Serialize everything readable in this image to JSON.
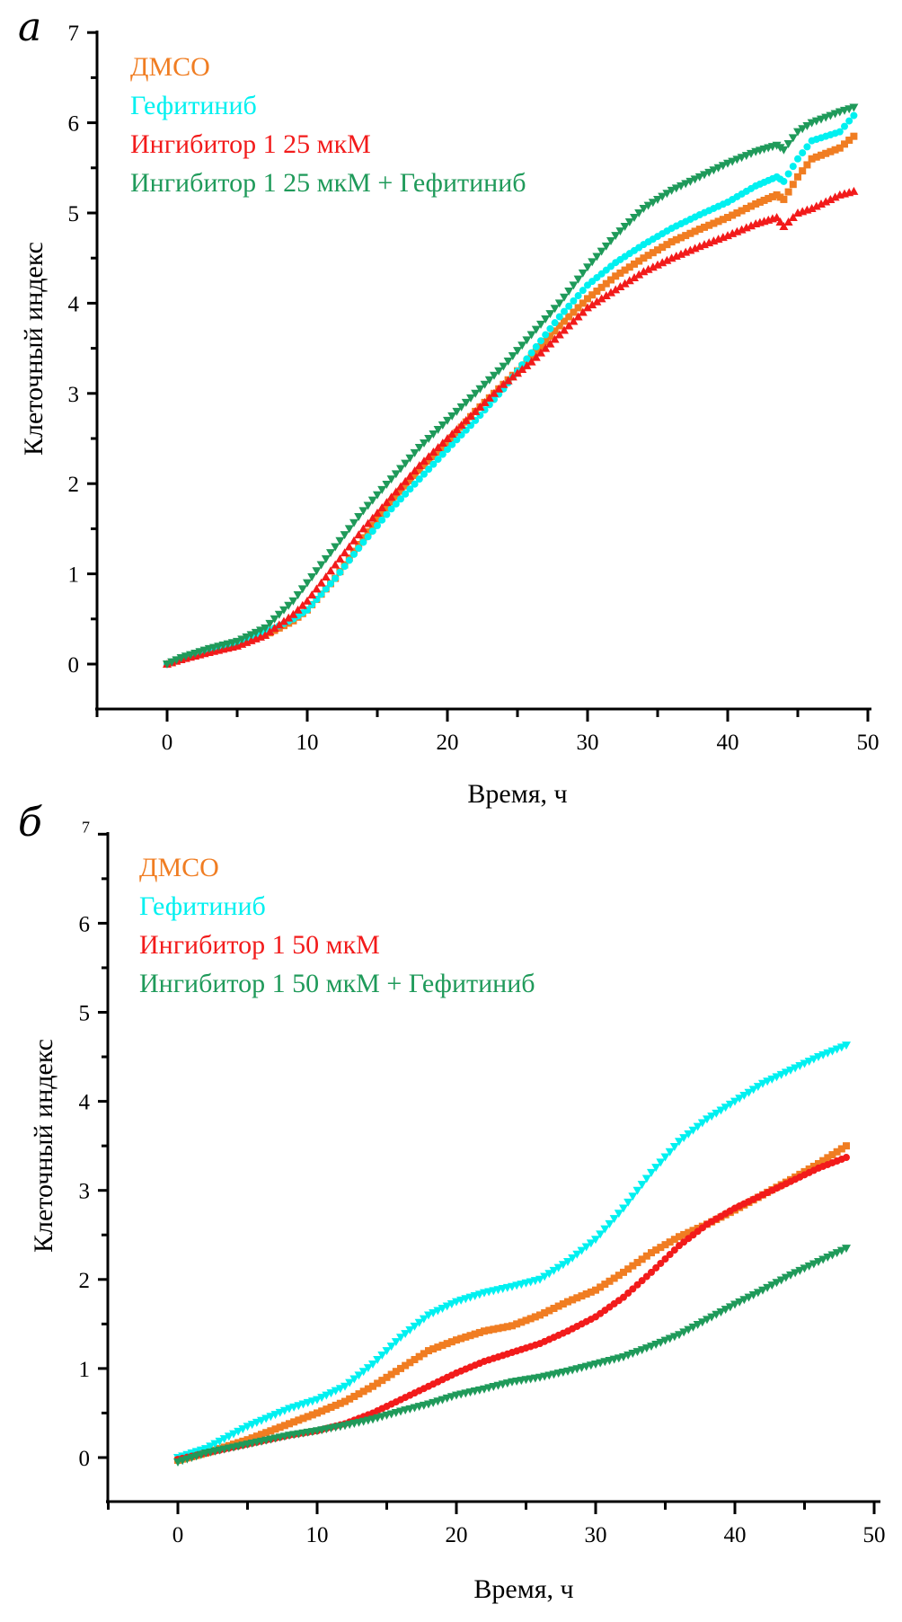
{
  "chart_data": [
    {
      "type": "scatter",
      "panel_label": "а",
      "xlabel": "Время, ч",
      "ylabel": "Клеточный индекс",
      "xlim": [
        -5,
        51
      ],
      "ylim": [
        -0.5,
        7
      ],
      "xticks": [
        0,
        10,
        20,
        30,
        40,
        50
      ],
      "yticks": [
        0,
        1,
        2,
        3,
        4,
        5,
        6,
        7
      ],
      "grid": false,
      "legend_position": "top-left",
      "series": [
        {
          "name": "ДМСО",
          "color": "#f07d22",
          "marker": "square",
          "x": [
            0,
            1,
            3,
            5,
            7,
            9,
            10,
            12,
            14,
            16,
            18,
            20,
            22,
            24,
            26,
            28,
            30,
            32,
            34,
            36,
            38,
            40,
            42,
            43.5,
            44,
            45,
            46,
            48,
            49
          ],
          "y": [
            0,
            0.05,
            0.15,
            0.22,
            0.32,
            0.48,
            0.6,
            0.95,
            1.4,
            1.8,
            2.15,
            2.45,
            2.8,
            3.1,
            3.4,
            3.75,
            4.05,
            4.3,
            4.5,
            4.68,
            4.82,
            4.95,
            5.1,
            5.2,
            5.15,
            5.4,
            5.6,
            5.72,
            5.85
          ]
        },
        {
          "name": "Гефитиниб",
          "color": "#00f0f0",
          "marker": "circle",
          "x": [
            0,
            1,
            3,
            5,
            7,
            9,
            10,
            12,
            14,
            16,
            18,
            20,
            22,
            24,
            26,
            28,
            30,
            32,
            34,
            36,
            38,
            40,
            42,
            43.5,
            44,
            45,
            46,
            48,
            49
          ],
          "y": [
            0,
            0.07,
            0.16,
            0.24,
            0.35,
            0.5,
            0.6,
            0.95,
            1.35,
            1.72,
            2.05,
            2.38,
            2.7,
            3.05,
            3.45,
            3.85,
            4.2,
            4.45,
            4.65,
            4.83,
            4.98,
            5.12,
            5.3,
            5.4,
            5.35,
            5.6,
            5.8,
            5.9,
            6.08
          ]
        },
        {
          "name": "Ингибитор 1 25 мкМ",
          "color": "#f21b1b",
          "marker": "triangle-up",
          "x": [
            0,
            1,
            3,
            5,
            7,
            9,
            10,
            12,
            14,
            16,
            18,
            20,
            22,
            24,
            26,
            28,
            30,
            32,
            34,
            36,
            38,
            40,
            42,
            43.5,
            44,
            45,
            46,
            48,
            49
          ],
          "y": [
            0,
            0.05,
            0.13,
            0.2,
            0.32,
            0.55,
            0.7,
            1.1,
            1.5,
            1.85,
            2.2,
            2.5,
            2.8,
            3.1,
            3.35,
            3.65,
            3.95,
            4.15,
            4.35,
            4.5,
            4.63,
            4.75,
            4.88,
            4.95,
            4.85,
            5.0,
            5.05,
            5.2,
            5.24
          ]
        },
        {
          "name": "Ингибитор 1 25 мкМ + Гефитиниб",
          "color": "#1f9a5a",
          "marker": "triangle-down",
          "x": [
            0,
            1,
            3,
            5,
            7,
            9,
            10,
            12,
            14,
            16,
            18,
            20,
            22,
            24,
            26,
            28,
            30,
            32,
            34,
            36,
            38,
            40,
            42,
            43.5,
            44,
            45,
            46,
            48,
            49
          ],
          "y": [
            0,
            0.07,
            0.17,
            0.25,
            0.4,
            0.7,
            0.9,
            1.3,
            1.7,
            2.05,
            2.4,
            2.7,
            3.0,
            3.3,
            3.65,
            4.0,
            4.4,
            4.75,
            5.05,
            5.25,
            5.4,
            5.55,
            5.68,
            5.75,
            5.7,
            5.9,
            6.0,
            6.12,
            6.17
          ]
        }
      ]
    },
    {
      "type": "scatter",
      "panel_label": "б",
      "xlabel": "Время, ч",
      "ylabel": "Клеточный индекс",
      "xlim": [
        -5,
        51
      ],
      "ylim": [
        -0.5,
        7
      ],
      "xticks": [
        0,
        10,
        20,
        30,
        40,
        50
      ],
      "yticks": [
        0,
        1,
        2,
        3,
        4,
        5,
        6,
        7
      ],
      "grid": false,
      "legend_position": "top-left",
      "series": [
        {
          "name": "ДМСО",
          "color": "#f07d22",
          "marker": "square",
          "x": [
            0,
            2,
            5,
            8,
            10,
            12,
            14,
            16,
            18,
            20,
            22,
            24,
            26,
            28,
            30,
            32,
            34,
            36,
            38,
            40,
            42,
            44,
            46,
            48
          ],
          "y": [
            -0.03,
            0.05,
            0.2,
            0.38,
            0.5,
            0.63,
            0.8,
            1.0,
            1.2,
            1.32,
            1.42,
            1.48,
            1.6,
            1.75,
            1.88,
            2.08,
            2.3,
            2.48,
            2.62,
            2.78,
            2.95,
            3.12,
            3.3,
            3.5
          ]
        },
        {
          "name": "Гефитиниб",
          "color": "#00f0f0",
          "marker": "triangle-down",
          "x": [
            0,
            2,
            5,
            8,
            10,
            12,
            14,
            16,
            18,
            20,
            22,
            24,
            26,
            28,
            30,
            32,
            34,
            36,
            38,
            40,
            42,
            44,
            46,
            48
          ],
          "y": [
            0,
            0.1,
            0.35,
            0.55,
            0.65,
            0.8,
            1.05,
            1.35,
            1.6,
            1.75,
            1.85,
            1.92,
            2.0,
            2.2,
            2.45,
            2.8,
            3.2,
            3.55,
            3.8,
            4.0,
            4.2,
            4.35,
            4.5,
            4.63
          ]
        },
        {
          "name": "Ингибитор 1 50 мкМ",
          "color": "#f21b1b",
          "marker": "circle",
          "x": [
            0,
            2,
            5,
            8,
            10,
            12,
            14,
            16,
            18,
            20,
            22,
            24,
            26,
            28,
            30,
            32,
            34,
            36,
            38,
            40,
            42,
            44,
            46,
            48
          ],
          "y": [
            -0.02,
            0.05,
            0.15,
            0.25,
            0.3,
            0.38,
            0.5,
            0.65,
            0.8,
            0.95,
            1.08,
            1.18,
            1.28,
            1.42,
            1.58,
            1.8,
            2.08,
            2.38,
            2.62,
            2.8,
            2.95,
            3.1,
            3.25,
            3.37
          ]
        },
        {
          "name": "Ингибитор 1 50 мкМ + Гефитиниб",
          "color": "#1f9a5a",
          "marker": "triangle-down",
          "x": [
            0,
            2,
            5,
            8,
            10,
            12,
            14,
            16,
            18,
            20,
            22,
            24,
            26,
            28,
            30,
            32,
            34,
            36,
            38,
            40,
            42,
            44,
            46,
            48
          ],
          "y": [
            -0.05,
            0.05,
            0.15,
            0.25,
            0.3,
            0.36,
            0.43,
            0.52,
            0.6,
            0.7,
            0.77,
            0.85,
            0.9,
            0.97,
            1.05,
            1.13,
            1.25,
            1.38,
            1.55,
            1.72,
            1.88,
            2.05,
            2.2,
            2.35
          ]
        }
      ]
    }
  ]
}
